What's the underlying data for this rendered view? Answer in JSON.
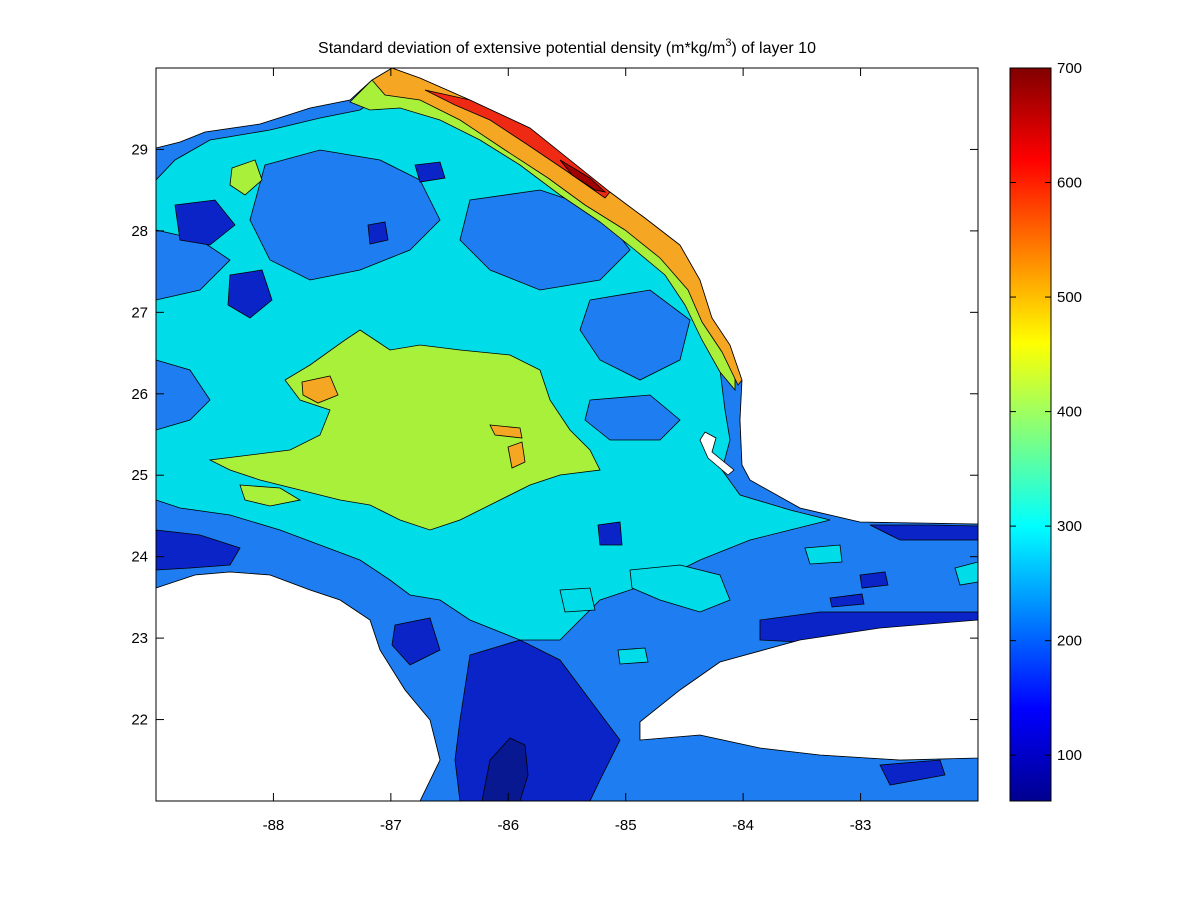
{
  "chart_data": {
    "type": "heatmap",
    "title": "Standard deviation of  extensive potential density (m*kg/m",
    "title_superscript": "3",
    "title_suffix": ")  of layer 10",
    "xlabel": "",
    "ylabel": "",
    "xlim": [
      -89,
      -82
    ],
    "ylim": [
      21,
      30
    ],
    "x_ticks": [
      -88,
      -87,
      -86,
      -85,
      -84,
      -83
    ],
    "x_tick_labels": [
      "-88",
      "-87",
      "-86",
      "-85",
      "-84",
      "-83"
    ],
    "y_ticks": [
      22,
      23,
      24,
      25,
      26,
      27,
      28,
      29
    ],
    "y_tick_labels": [
      "22",
      "23",
      "24",
      "25",
      "26",
      "27",
      "28",
      "29"
    ],
    "colorbar": {
      "colormap": "jet",
      "range": [
        60,
        700
      ],
      "ticks": [
        100,
        200,
        300,
        400,
        500,
        600,
        700
      ],
      "tick_labels": [
        "100",
        "200",
        "300",
        "400",
        "500",
        "600",
        "700"
      ]
    },
    "land_color": "#ffffff",
    "contour_line_color": "#000000"
  }
}
